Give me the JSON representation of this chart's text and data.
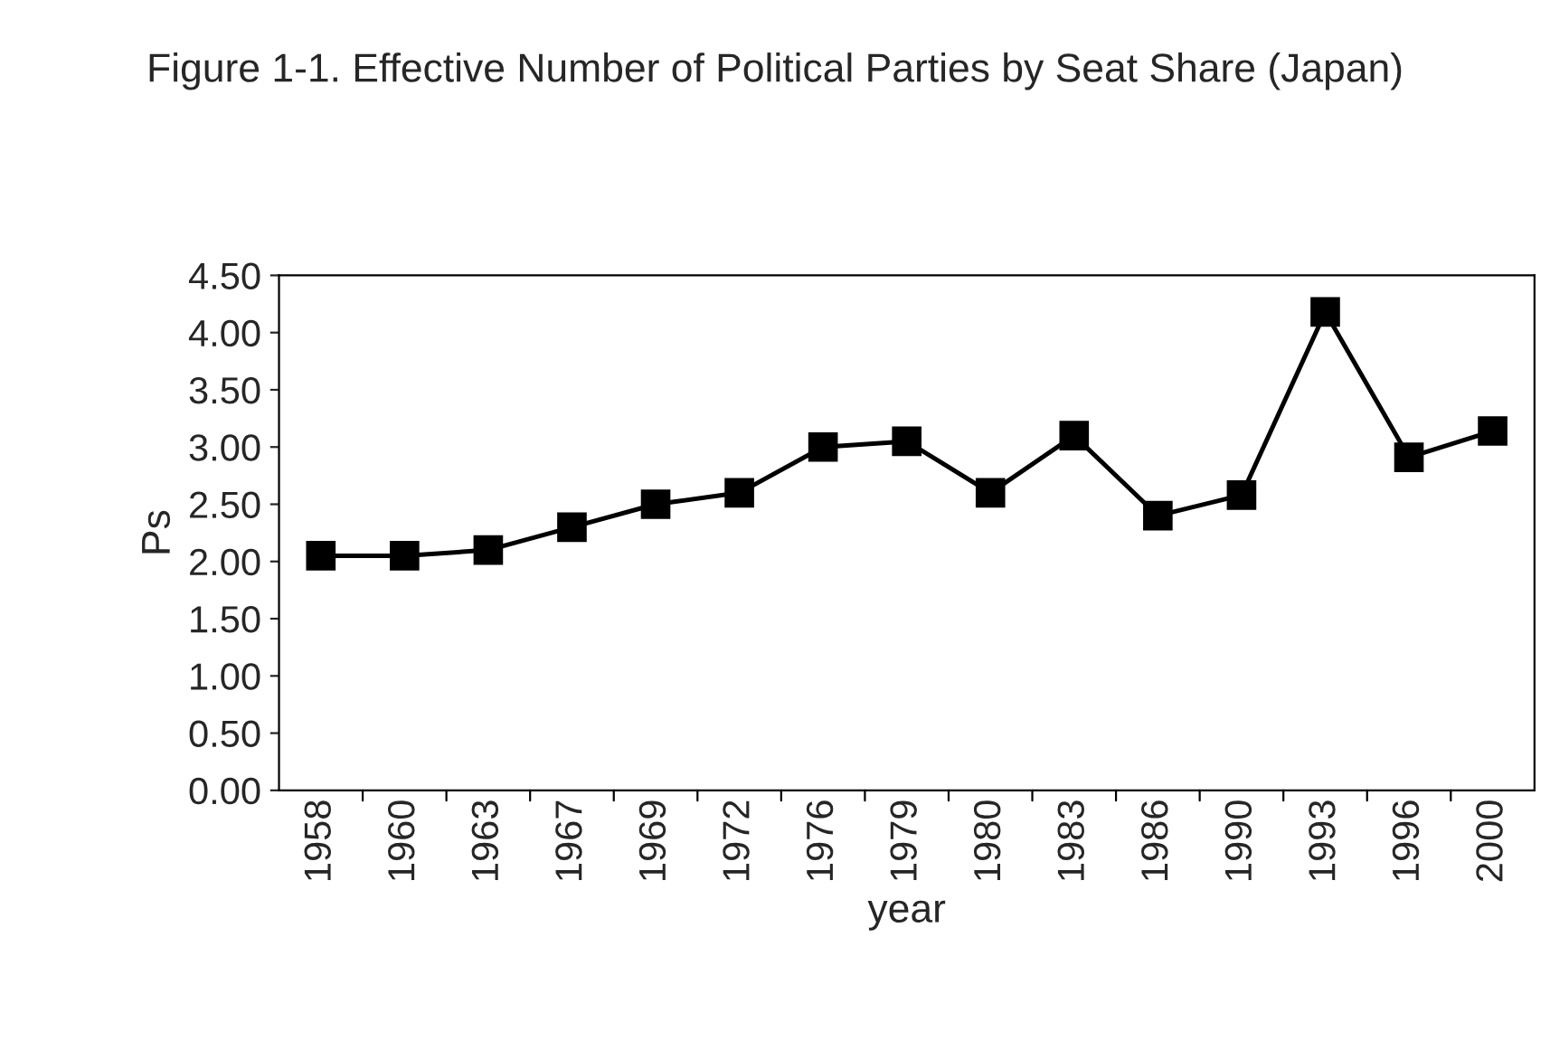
{
  "chart_data": {
    "type": "line",
    "title": "Figure 1-1. Effective Number of Political Parties by Seat Share (Japan)",
    "xlabel": "year",
    "ylabel": "Ps",
    "categories": [
      "1958",
      "1960",
      "1963",
      "1967",
      "1969",
      "1972",
      "1976",
      "1979",
      "1980",
      "1983",
      "1986",
      "1990",
      "1993",
      "1996",
      "2000"
    ],
    "series": [
      {
        "color": "#000000",
        "values": [
          2.05,
          2.05,
          2.1,
          2.3,
          2.5,
          2.6,
          3.0,
          3.05,
          2.6,
          3.1,
          2.4,
          2.58,
          4.18,
          2.91,
          3.14
        ]
      }
    ],
    "ylim": [
      0,
      4.5
    ],
    "yticks": [
      {
        "value": 0,
        "label": "0.00"
      },
      {
        "value": 0.5,
        "label": "0.50"
      },
      {
        "value": 1,
        "label": "1.00"
      },
      {
        "value": 1.5,
        "label": "1.50"
      },
      {
        "value": 2,
        "label": "2.00"
      },
      {
        "value": 2.5,
        "label": "2.50"
      },
      {
        "value": 3,
        "label": "3.00"
      },
      {
        "value": 3.5,
        "label": "3.50"
      },
      {
        "value": 4,
        "label": "4.00"
      },
      {
        "value": 4.5,
        "label": "4.50"
      }
    ],
    "marker": "square",
    "line_style": "solid",
    "grid": false
  }
}
